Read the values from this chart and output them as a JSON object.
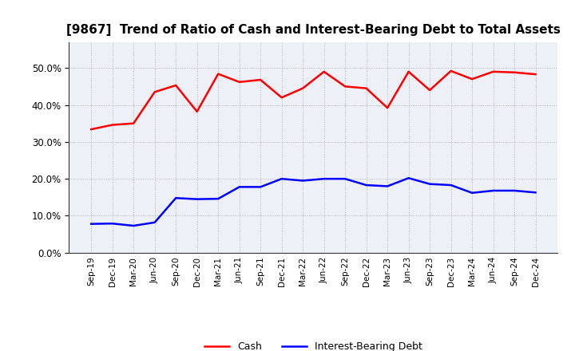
{
  "title": "[9867]  Trend of Ratio of Cash and Interest-Bearing Debt to Total Assets",
  "x_labels": [
    "Sep-19",
    "Dec-19",
    "Mar-20",
    "Jun-20",
    "Sep-20",
    "Dec-20",
    "Mar-21",
    "Jun-21",
    "Sep-21",
    "Dec-21",
    "Mar-22",
    "Jun-22",
    "Sep-22",
    "Dec-22",
    "Mar-23",
    "Jun-23",
    "Sep-23",
    "Dec-23",
    "Mar-24",
    "Jun-24",
    "Sep-24",
    "Dec-24"
  ],
  "cash": [
    0.334,
    0.346,
    0.35,
    0.435,
    0.453,
    0.382,
    0.484,
    0.462,
    0.468,
    0.42,
    0.445,
    0.49,
    0.45,
    0.445,
    0.392,
    0.49,
    0.44,
    0.492,
    0.47,
    0.49,
    0.488,
    0.483
  ],
  "interest_bearing_debt": [
    0.078,
    0.079,
    0.073,
    0.082,
    0.148,
    0.145,
    0.146,
    0.178,
    0.178,
    0.2,
    0.195,
    0.2,
    0.2,
    0.183,
    0.18,
    0.202,
    0.186,
    0.183,
    0.162,
    0.168,
    0.168,
    0.163
  ],
  "cash_color": "#FF0000",
  "debt_color": "#0000FF",
  "ylim": [
    0.0,
    0.57
  ],
  "yticks": [
    0.0,
    0.1,
    0.2,
    0.3,
    0.4,
    0.5
  ],
  "background_color": "#FFFFFF",
  "plot_background": "#EEF0F8",
  "grid_color": "#999999",
  "legend_labels": [
    "Cash",
    "Interest-Bearing Debt"
  ],
  "title_fontsize": 11
}
